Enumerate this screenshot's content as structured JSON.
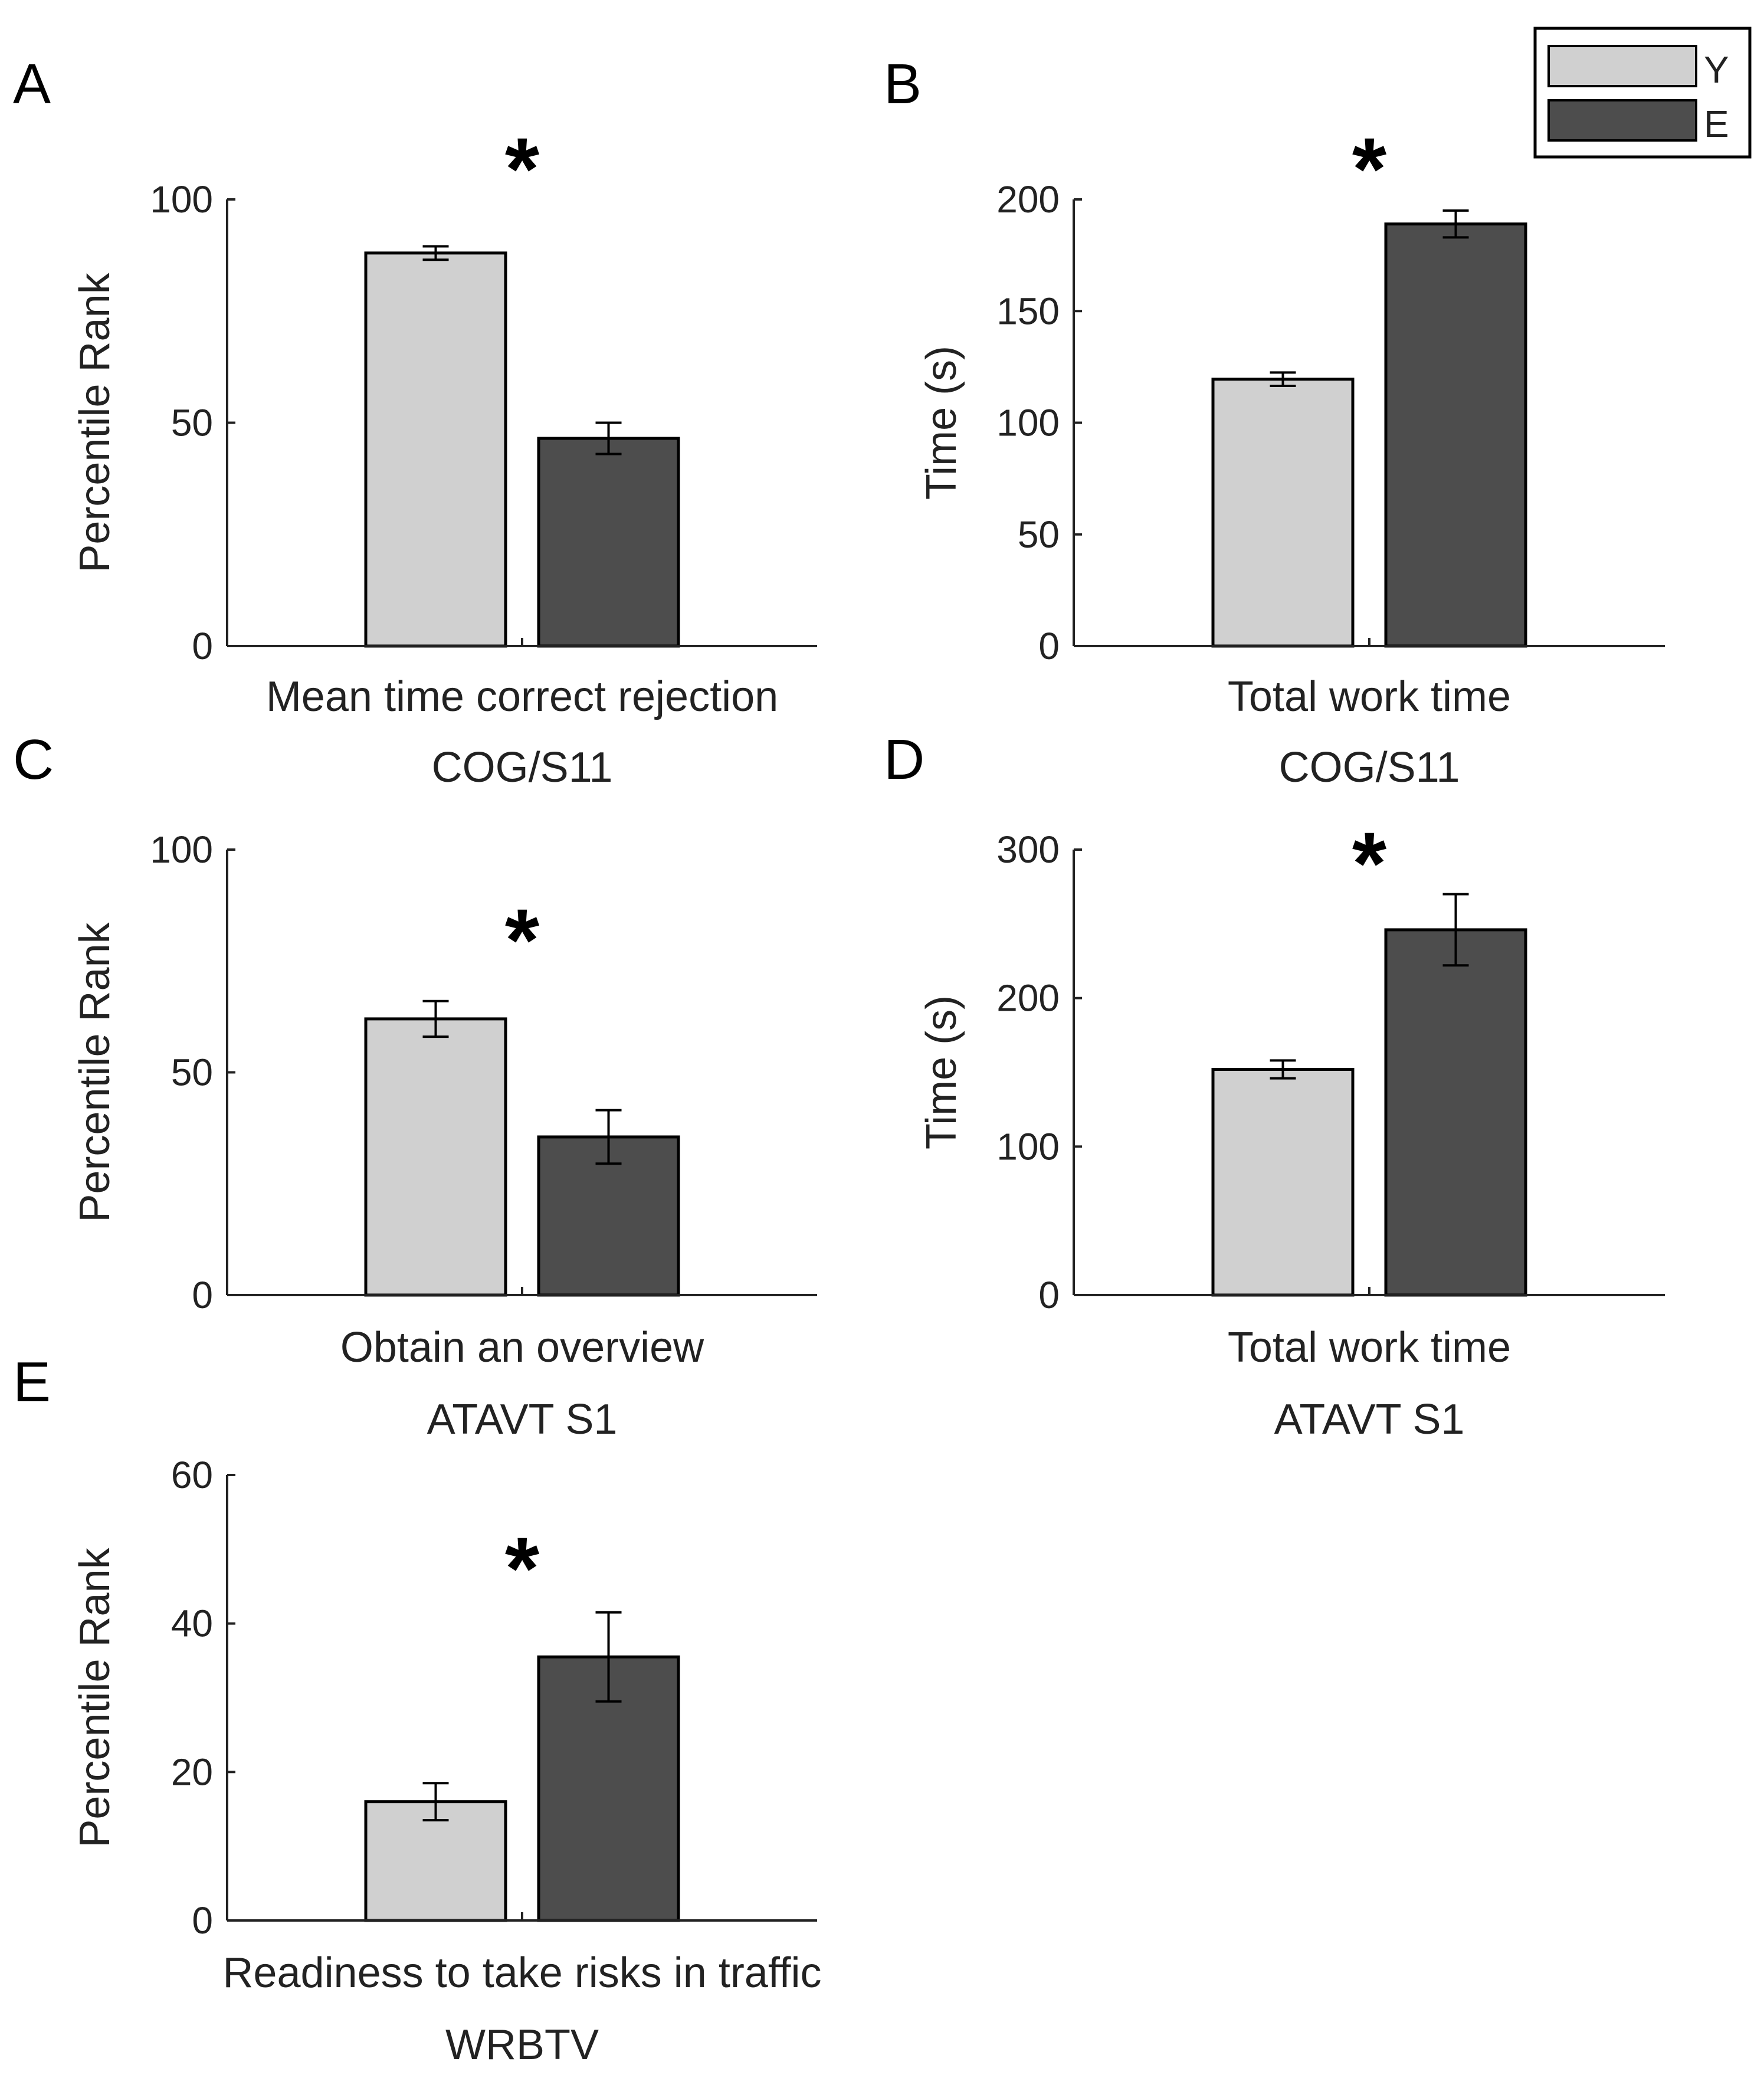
{
  "legend": {
    "items": [
      {
        "label": "Y",
        "color": "#d0d0d0"
      },
      {
        "label": "E",
        "color": "#4d4d4d"
      }
    ]
  },
  "chart_data": [
    {
      "panel": "A",
      "type": "bar",
      "categories": [
        "Y",
        "E"
      ],
      "values": [
        88,
        46.5
      ],
      "errors": [
        1.5,
        3.5
      ],
      "ylabel": "Percentile Rank",
      "xlabel": "Mean time correct rejection",
      "xlabel2": "COG/S11",
      "ylim": [
        0,
        100
      ],
      "yticks": [
        "0",
        "50",
        "100"
      ],
      "ytick_values": [
        0,
        50,
        100
      ],
      "significance": "*"
    },
    {
      "panel": "B",
      "type": "bar",
      "categories": [
        "Y",
        "E"
      ],
      "values": [
        119.5,
        189
      ],
      "errors": [
        3,
        6
      ],
      "ylabel": "Time (s)",
      "xlabel": "Total work time",
      "xlabel2": "COG/S11",
      "ylim": [
        0,
        200
      ],
      "yticks": [
        "0",
        "50",
        "100",
        "150",
        "200"
      ],
      "ytick_values": [
        0,
        50,
        100,
        150,
        200
      ],
      "significance": "*"
    },
    {
      "panel": "C",
      "type": "bar",
      "categories": [
        "Y",
        "E"
      ],
      "values": [
        62,
        35.5
      ],
      "errors": [
        4,
        6
      ],
      "ylabel": "Percentile Rank",
      "xlabel": "Obtain an overview",
      "xlabel2": "ATAVT S1",
      "ylim": [
        0,
        100
      ],
      "yticks": [
        "0",
        "50",
        "100"
      ],
      "ytick_values": [
        0,
        50,
        100
      ],
      "significance": "*"
    },
    {
      "panel": "D",
      "type": "bar",
      "categories": [
        "Y",
        "E"
      ],
      "values": [
        152,
        246
      ],
      "errors": [
        6,
        24
      ],
      "ylabel": "Time (s)",
      "xlabel": "Total work time",
      "xlabel2": "ATAVT S1",
      "ylim": [
        0,
        300
      ],
      "yticks": [
        "0",
        "100",
        "200",
        "300"
      ],
      "ytick_values": [
        0,
        100,
        200,
        300
      ],
      "significance": "*"
    },
    {
      "panel": "E",
      "type": "bar",
      "categories": [
        "Y",
        "E"
      ],
      "values": [
        16,
        35.5
      ],
      "errors": [
        2.5,
        6
      ],
      "ylabel": "Percentile Rank",
      "xlabel": "Readiness to take risks in traffic",
      "xlabel2": "WRBTV",
      "ylim": [
        0,
        60
      ],
      "yticks": [
        "0",
        "20",
        "40",
        "60"
      ],
      "ytick_values": [
        0,
        20,
        40,
        60
      ],
      "significance": "*"
    }
  ]
}
